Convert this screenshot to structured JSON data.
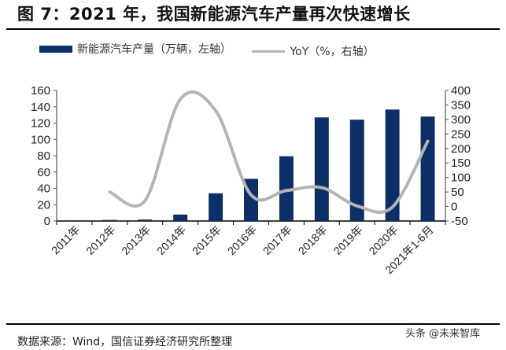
{
  "title": "图 7：2021 年，我国新能源汽车产量再次快速增长",
  "source": "数据来源：Wind，国信证券经济研究所整理",
  "watermark": "头条 @未来智库",
  "chart_data": {
    "type": "bar+line",
    "categories": [
      "2011年",
      "2012年",
      "2013年",
      "2014年",
      "2015年",
      "2016年",
      "2017年",
      "2018年",
      "2019年",
      "2020年",
      "2021年1-6月"
    ],
    "series": [
      {
        "name": "新能源汽车产量（万辆，左轴）",
        "type": "bar",
        "axis": "left",
        "color": "#0b2f66",
        "values": [
          0.8,
          1.3,
          1.8,
          7.9,
          34.0,
          51.7,
          79.4,
          127.0,
          124.2,
          136.6,
          128.0
        ]
      },
      {
        "name": "YoY（%，右轴）",
        "type": "line",
        "axis": "right",
        "color": "#b4b4b4",
        "values": [
          null,
          50,
          20,
          370,
          330,
          40,
          55,
          65,
          2,
          -2,
          225
        ]
      }
    ],
    "y_left": {
      "min": 0,
      "max": 160,
      "ticks": [
        0,
        20,
        40,
        60,
        80,
        100,
        120,
        140,
        160
      ]
    },
    "y_right": {
      "min": -50,
      "max": 400,
      "ticks": [
        -50,
        0,
        50,
        100,
        150,
        200,
        250,
        300,
        350,
        400
      ]
    },
    "grid": false,
    "legend": "top"
  }
}
